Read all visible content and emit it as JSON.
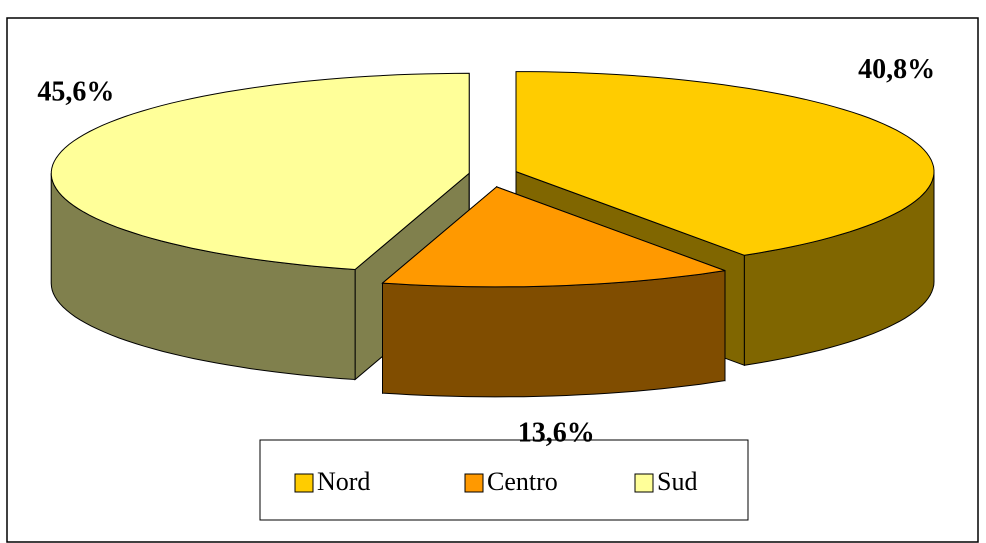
{
  "chart_data": {
    "type": "pie",
    "three_d": true,
    "exploded": true,
    "categories": [
      "Nord",
      "Centro",
      "Sud"
    ],
    "values": [
      40.8,
      13.6,
      45.6
    ],
    "value_labels": [
      "40,8%",
      "13,6%",
      "45,6%"
    ],
    "colors": [
      "#ffcc00",
      "#ff9900",
      "#ffff99"
    ],
    "legend": "bottom"
  }
}
